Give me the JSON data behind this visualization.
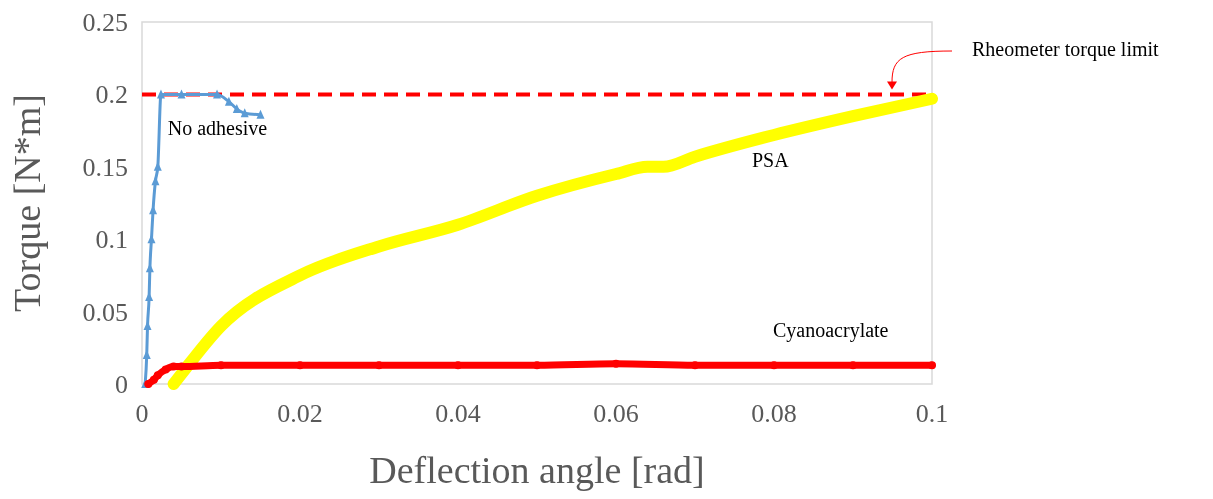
{
  "chart_data": {
    "type": "line",
    "xlabel": "Deflection angle [rad]",
    "ylabel": "Torque [N*m]",
    "xlim": [
      0,
      0.1
    ],
    "xticks": [
      0,
      0.02,
      0.04,
      0.06,
      0.08,
      0.1
    ],
    "ylim": [
      0,
      0.25
    ],
    "yticks": [
      0,
      0.05,
      0.1,
      0.15,
      0.2,
      0.25
    ],
    "grid": false,
    "ref_lines": [
      {
        "axis": "y",
        "value": 0.2,
        "label": "Rheometer torque limit",
        "color": "#ff0000",
        "line_style": "dashed"
      }
    ],
    "series": [
      {
        "name": "No adhesive",
        "color": "#5b9bd5",
        "marker": "triangle",
        "x": [
          0.0004,
          0.0006,
          0.0007,
          0.0009,
          0.001,
          0.0012,
          0.0014,
          0.0017,
          0.002,
          0.0024,
          0.005,
          0.0095,
          0.011,
          0.012,
          0.013,
          0.015
        ],
        "values": [
          0,
          0.02,
          0.04,
          0.06,
          0.08,
          0.1,
          0.12,
          0.14,
          0.15,
          0.2,
          0.2,
          0.2,
          0.195,
          0.19,
          0.187,
          0.186
        ]
      },
      {
        "name": "PSA",
        "color": "#ffff00",
        "marker": "square",
        "x": [
          0.004,
          0.005,
          0.01,
          0.02,
          0.03,
          0.04,
          0.05,
          0.06,
          0.064,
          0.066,
          0.07,
          0.08,
          0.09,
          0.1
        ],
        "values": [
          0,
          0.007,
          0.04,
          0.075,
          0.095,
          0.11,
          0.13,
          0.145,
          0.15,
          0.15,
          0.157,
          0.172,
          0.185,
          0.197
        ]
      },
      {
        "name": "Cyanoacrylate",
        "color": "#ff0000",
        "marker": "circle",
        "x": [
          0.0008,
          0.0015,
          0.002,
          0.003,
          0.004,
          0.005,
          0.01,
          0.02,
          0.03,
          0.04,
          0.05,
          0.06,
          0.07,
          0.08,
          0.09,
          0.1
        ],
        "values": [
          0,
          0.003,
          0.006,
          0.01,
          0.012,
          0.012,
          0.013,
          0.013,
          0.013,
          0.013,
          0.013,
          0.014,
          0.013,
          0.013,
          0.013,
          0.013
        ]
      }
    ]
  }
}
